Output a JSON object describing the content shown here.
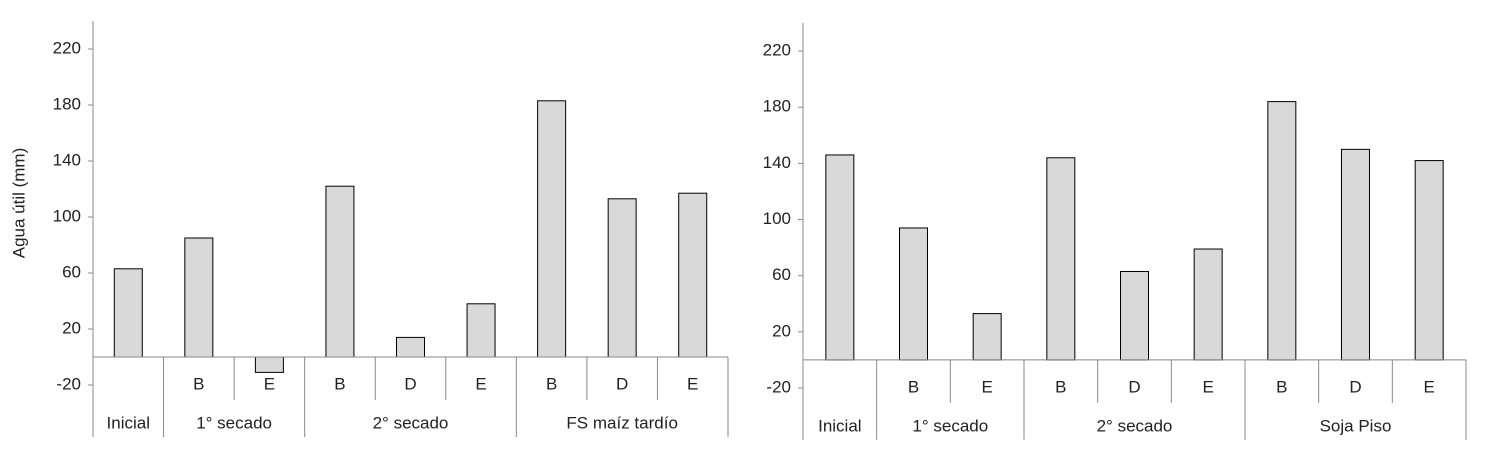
{
  "chart_data": [
    {
      "type": "bar",
      "y_label": "Agua útil (mm)",
      "color": "#d9d9d9",
      "groups": [
        {
          "name": "Inicial",
          "categories": [
            null
          ]
        },
        {
          "name": "1° secado",
          "categories": [
            "B",
            "E"
          ]
        },
        {
          "name": "2° secado",
          "categories": [
            "B",
            "D",
            "E"
          ]
        },
        {
          "name": "FS maíz tardío",
          "categories": [
            "B",
            "D",
            "E"
          ]
        }
      ],
      "values": [
        63,
        85,
        -11,
        122,
        14,
        38,
        183,
        113,
        117
      ],
      "ylim": [
        -20,
        240
      ],
      "yticks": [
        -20,
        20,
        60,
        100,
        140,
        180,
        220
      ]
    },
    {
      "type": "bar",
      "color": "#d9d9d9",
      "groups": [
        {
          "name": "Inicial",
          "categories": [
            null
          ]
        },
        {
          "name": "1° secado",
          "categories": [
            "B",
            "E"
          ]
        },
        {
          "name": "2° secado",
          "categories": [
            "B",
            "D",
            "E"
          ]
        },
        {
          "name": "Soja Piso",
          "categories": [
            "B",
            "D",
            "E"
          ]
        }
      ],
      "values": [
        146,
        94,
        33,
        144,
        63,
        79,
        184,
        150,
        142
      ],
      "ylim": [
        -20,
        240
      ],
      "yticks": [
        -20,
        20,
        60,
        100,
        140,
        180,
        220
      ]
    }
  ]
}
